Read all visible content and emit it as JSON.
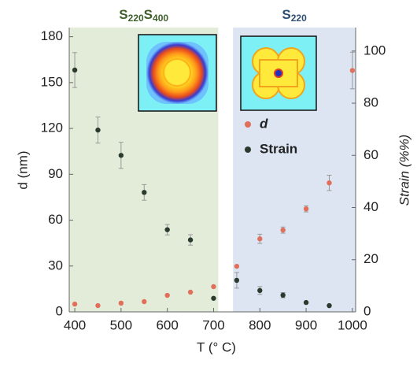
{
  "chart_data": {
    "type": "scatter",
    "xlabel": "T (° C)",
    "ylabel": "d (nm)",
    "y2label": "Strain (%%)",
    "xlim": [
      388,
      1007
    ],
    "ylim": [
      0,
      186
    ],
    "y2lim": [
      0,
      109
    ],
    "xticks": [
      400,
      500,
      600,
      700,
      800,
      900,
      1000
    ],
    "yticks": [
      0,
      30,
      60,
      90,
      120,
      150,
      180
    ],
    "y2ticks": [
      0,
      20,
      40,
      60,
      80,
      100
    ],
    "regions": [
      {
        "label_parts": [
          {
            "text": "S"
          },
          {
            "text": "220",
            "sub": true
          },
          {
            "text": "S"
          },
          {
            "text": "400",
            "sub": true
          }
        ],
        "x": [
          388,
          710
        ],
        "color": "#e3ecd9",
        "label_color": "#3e5f2a"
      },
      {
        "label_parts": [
          {
            "text": "S"
          },
          {
            "text": "220",
            "sub": true
          }
        ],
        "x": [
          742,
          1007
        ],
        "color": "#dce5f1",
        "label_color": "#2e4f72"
      }
    ],
    "series": [
      {
        "name": "d",
        "color": "#e0705c",
        "x": [
          400,
          450,
          500,
          550,
          600,
          650,
          700,
          750,
          800,
          850,
          900,
          950,
          1000
        ],
        "values": [
          5.1,
          4.1,
          5.7,
          6.7,
          10.8,
          12.9,
          16.5,
          29.8,
          47.8,
          53.5,
          67.4,
          84.4,
          157.9
        ],
        "errors": [
          null,
          null,
          null,
          null,
          null,
          null,
          null,
          null,
          3,
          2,
          2,
          5,
          12
        ]
      },
      {
        "name": "Strain",
        "color": "#2b3a2e",
        "axis": "y2",
        "x": [
          400,
          450,
          500,
          550,
          600,
          650,
          700,
          750,
          800,
          850,
          900,
          950
        ],
        "values": [
          92.7,
          69.7,
          60,
          45.8,
          31.5,
          27.6,
          5.2,
          12.1,
          8.2,
          6.4,
          3.6,
          2.4
        ],
        "errors": [
          6.7,
          5,
          5,
          3,
          2,
          2,
          null,
          3,
          1.5,
          1,
          null,
          null
        ]
      }
    ]
  }
}
